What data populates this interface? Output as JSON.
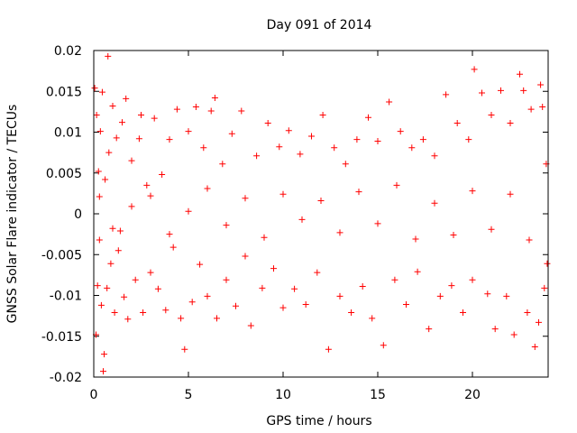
{
  "chart_data": {
    "type": "scatter",
    "title": "Day 091 of 2014",
    "xlabel": "GPS time / hours",
    "ylabel": "GNSS Solar Flare indicator / TECUs",
    "xlim": [
      0,
      24
    ],
    "ylim": [
      -0.02,
      0.02
    ],
    "xticks": [
      0,
      5,
      10,
      15,
      20
    ],
    "xtick_labels": [
      "0",
      "5",
      "10",
      "15",
      "20"
    ],
    "yticks": [
      -0.02,
      -0.015,
      -0.01,
      -0.005,
      0,
      0.005,
      0.01,
      0.015,
      0.02
    ],
    "ytick_labels": [
      "-0.02",
      "-0.015",
      "-0.01",
      "-0.005",
      "0",
      "0.005",
      "0.01",
      "0.015",
      "0.02"
    ],
    "grid": false,
    "marker": "+",
    "series": [
      {
        "name": "GNSS Solar Flare indicator",
        "color": "#ff0000",
        "points": [
          [
            0.05,
            0.0154
          ],
          [
            0.12,
            -0.0148
          ],
          [
            0.15,
            0.0121
          ],
          [
            0.2,
            -0.0088
          ],
          [
            0.25,
            0.0052
          ],
          [
            0.3,
            -0.0032
          ],
          [
            0.35,
            0.0101
          ],
          [
            0.4,
            -0.0112
          ],
          [
            0.45,
            0.0149
          ],
          [
            0.5,
            -0.0193
          ],
          [
            0.55,
            -0.0172
          ],
          [
            0.6,
            0.0042
          ],
          [
            0.7,
            -0.0091
          ],
          [
            0.75,
            0.0193
          ],
          [
            0.8,
            0.0075
          ],
          [
            0.9,
            -0.0061
          ],
          [
            1.0,
            0.0132
          ],
          [
            1.1,
            -0.0121
          ],
          [
            1.2,
            0.0093
          ],
          [
            1.3,
            -0.0045
          ],
          [
            1.4,
            -0.0021
          ],
          [
            1.5,
            0.0112
          ],
          [
            1.6,
            -0.0102
          ],
          [
            1.7,
            0.0141
          ],
          [
            1.8,
            -0.0129
          ],
          [
            2.0,
            0.0065
          ],
          [
            2.2,
            -0.0081
          ],
          [
            2.4,
            0.0092
          ],
          [
            2.5,
            0.0121
          ],
          [
            2.6,
            -0.0121
          ],
          [
            2.8,
            0.0035
          ],
          [
            3.0,
            -0.0072
          ],
          [
            3.2,
            0.0117
          ],
          [
            3.4,
            -0.0092
          ],
          [
            3.6,
            0.0048
          ],
          [
            3.8,
            -0.0118
          ],
          [
            4.0,
            0.0091
          ],
          [
            4.2,
            -0.0041
          ],
          [
            4.4,
            0.0128
          ],
          [
            4.6,
            -0.0128
          ],
          [
            4.8,
            -0.0166
          ],
          [
            5.0,
            0.0101
          ],
          [
            5.2,
            -0.0108
          ],
          [
            5.4,
            0.0131
          ],
          [
            5.6,
            -0.0062
          ],
          [
            5.8,
            0.0081
          ],
          [
            6.0,
            -0.0101
          ],
          [
            6.2,
            0.0126
          ],
          [
            6.4,
            0.0142
          ],
          [
            6.5,
            -0.0128
          ],
          [
            6.8,
            0.0061
          ],
          [
            7.0,
            -0.0081
          ],
          [
            7.3,
            0.0098
          ],
          [
            7.5,
            -0.0113
          ],
          [
            7.8,
            0.0126
          ],
          [
            8.0,
            -0.0052
          ],
          [
            8.3,
            -0.0137
          ],
          [
            8.6,
            0.0071
          ],
          [
            8.9,
            -0.0091
          ],
          [
            9.2,
            0.0111
          ],
          [
            9.5,
            -0.0067
          ],
          [
            9.8,
            0.0082
          ],
          [
            10.0,
            -0.0115
          ],
          [
            10.3,
            0.0102
          ],
          [
            10.6,
            -0.0092
          ],
          [
            10.9,
            0.0073
          ],
          [
            11.2,
            -0.0111
          ],
          [
            11.5,
            0.0095
          ],
          [
            11.8,
            -0.0072
          ],
          [
            12.1,
            0.0121
          ],
          [
            12.4,
            -0.0166
          ],
          [
            12.7,
            0.0081
          ],
          [
            13.0,
            -0.0101
          ],
          [
            13.3,
            0.0061
          ],
          [
            13.6,
            -0.0121
          ],
          [
            13.9,
            0.0091
          ],
          [
            14.2,
            -0.0089
          ],
          [
            14.5,
            0.0118
          ],
          [
            14.7,
            -0.0128
          ],
          [
            15.0,
            0.0089
          ],
          [
            15.3,
            -0.0161
          ],
          [
            15.6,
            0.0137
          ],
          [
            15.9,
            -0.0081
          ],
          [
            16.2,
            0.0101
          ],
          [
            16.5,
            -0.0111
          ],
          [
            16.8,
            0.0081
          ],
          [
            17.1,
            -0.0071
          ],
          [
            17.4,
            0.0091
          ],
          [
            17.7,
            -0.0141
          ],
          [
            18.0,
            0.0071
          ],
          [
            18.3,
            -0.0101
          ],
          [
            18.6,
            0.0146
          ],
          [
            18.9,
            -0.0088
          ],
          [
            19.2,
            0.0111
          ],
          [
            19.5,
            -0.0121
          ],
          [
            19.8,
            0.0091
          ],
          [
            20.0,
            -0.0081
          ],
          [
            20.1,
            0.0177
          ],
          [
            20.5,
            0.0148
          ],
          [
            20.8,
            -0.0098
          ],
          [
            21.0,
            0.0121
          ],
          [
            21.2,
            -0.0141
          ],
          [
            21.5,
            0.0151
          ],
          [
            21.8,
            -0.0101
          ],
          [
            22.0,
            0.0111
          ],
          [
            22.2,
            -0.0148
          ],
          [
            22.5,
            0.0171
          ],
          [
            22.7,
            0.0151
          ],
          [
            22.9,
            -0.0121
          ],
          [
            23.1,
            0.0128
          ],
          [
            23.3,
            -0.0163
          ],
          [
            23.5,
            -0.0133
          ],
          [
            23.6,
            0.0158
          ],
          [
            23.7,
            0.0131
          ],
          [
            23.8,
            -0.0091
          ],
          [
            23.9,
            0.0061
          ],
          [
            23.95,
            -0.0061
          ],
          [
            0.3,
            0.0021
          ],
          [
            1.0,
            -0.0018
          ],
          [
            2.0,
            0.0009
          ],
          [
            3.0,
            0.0022
          ],
          [
            4.0,
            -0.0025
          ],
          [
            5.0,
            0.0003
          ],
          [
            6.0,
            0.0031
          ],
          [
            7.0,
            -0.0014
          ],
          [
            8.0,
            0.0019
          ],
          [
            9.0,
            -0.0029
          ],
          [
            10.0,
            0.0024
          ],
          [
            11.0,
            -0.0007
          ],
          [
            12.0,
            0.0016
          ],
          [
            13.0,
            -0.0023
          ],
          [
            14.0,
            0.0027
          ],
          [
            15.0,
            -0.0012
          ],
          [
            16.0,
            0.0035
          ],
          [
            17.0,
            -0.0031
          ],
          [
            18.0,
            0.0013
          ],
          [
            19.0,
            -0.0026
          ],
          [
            20.0,
            0.0028
          ],
          [
            21.0,
            -0.0019
          ],
          [
            22.0,
            0.0024
          ],
          [
            23.0,
            -0.0032
          ]
        ]
      }
    ]
  }
}
